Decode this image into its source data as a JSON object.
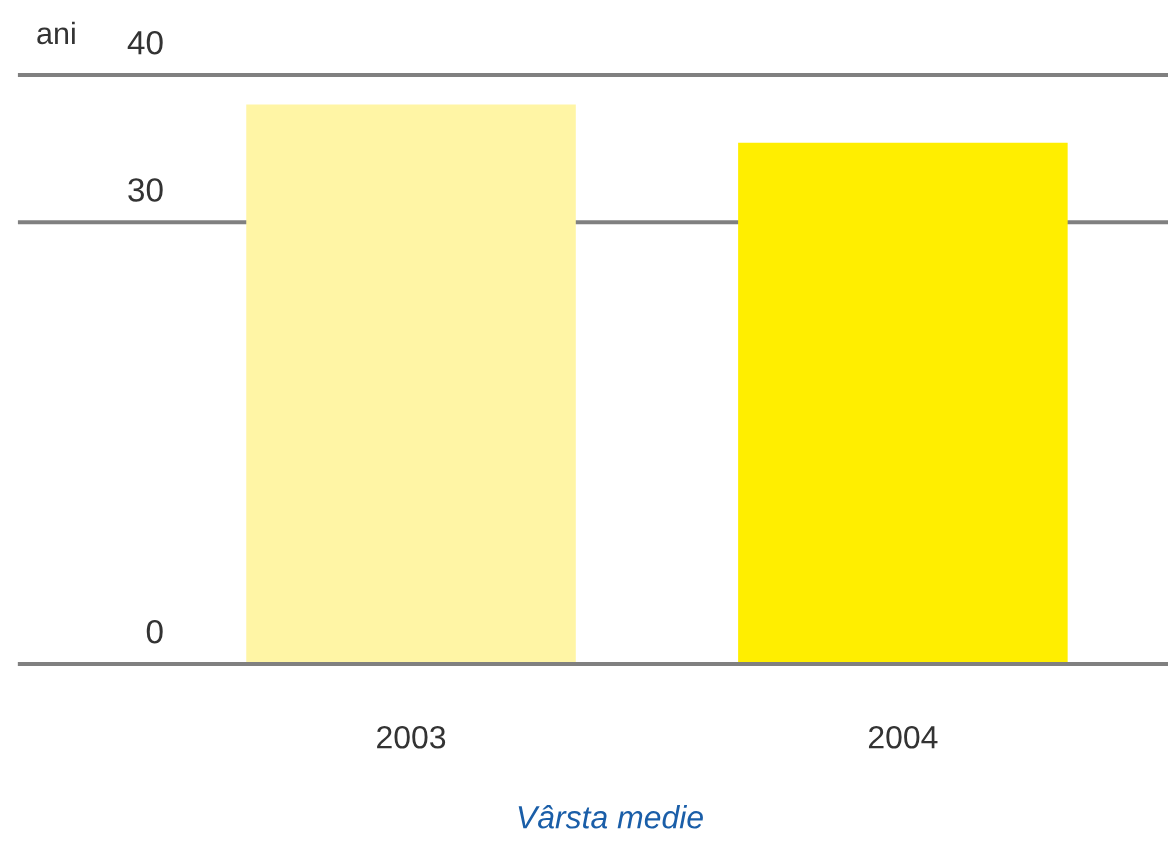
{
  "chart_data": {
    "type": "bar",
    "title": "Vârsta medie",
    "annotations": [
      "ani"
    ],
    "categories": [
      "2003",
      "2004"
    ],
    "values": [
      38,
      35.4
    ],
    "colors": [
      "#fff5a5",
      "#ffee00"
    ],
    "ylim": [
      0,
      40
    ],
    "yticks": [
      0,
      30,
      40
    ],
    "grid": "y"
  }
}
